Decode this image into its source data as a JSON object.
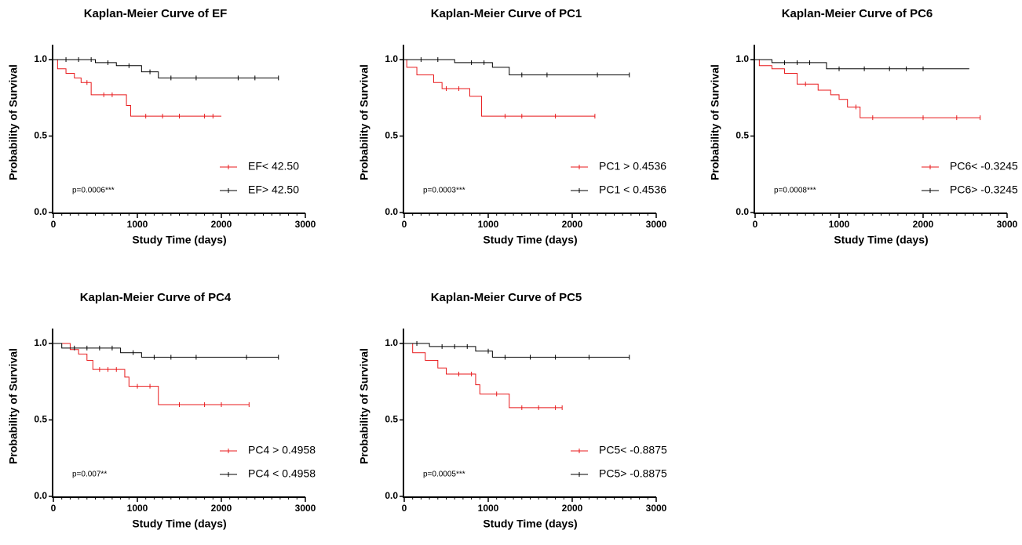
{
  "chart_data": [
    {
      "type": "step",
      "title": "Kaplan-Meier Curve of EF",
      "x_label": "Study Time (days)",
      "y_label": "Probability of Survival",
      "annotation": "p=0.0006***",
      "xlim": [
        0,
        3000
      ],
      "ylim": [
        0,
        1.0
      ],
      "xticks": [
        0,
        1000,
        2000,
        3000
      ],
      "yticks": [
        {
          "value": 0,
          "label": "0.0"
        },
        {
          "value": 0.5,
          "label": "0.5"
        },
        {
          "value": 1,
          "label": "1.0"
        }
      ],
      "series": [
        {
          "name": "EF< 42.50",
          "color": "#e8191b",
          "x": [
            0,
            50,
            150,
            250,
            330,
            450,
            870,
            920,
            2000
          ],
          "values": [
            1.0,
            0.94,
            0.91,
            0.88,
            0.85,
            0.77,
            0.7,
            0.63,
            0.63
          ],
          "censored": [
            400,
            600,
            700,
            1100,
            1300,
            1500,
            1800,
            1900
          ]
        },
        {
          "name": "EF> 42.50",
          "color": "#000000",
          "x": [
            0,
            500,
            750,
            1050,
            1250,
            2680
          ],
          "values": [
            1.0,
            0.98,
            0.96,
            0.92,
            0.88,
            0.88
          ],
          "censored": [
            150,
            300,
            450,
            650,
            900,
            1150,
            1400,
            1700,
            2200,
            2400,
            2680
          ]
        }
      ]
    },
    {
      "type": "step",
      "title": "Kaplan-Meier Curve of PC1",
      "x_label": "Study Time (days)",
      "y_label": "Probability of Survival",
      "annotation": "p=0.0003***",
      "xlim": [
        0,
        3000
      ],
      "ylim": [
        0,
        1.0
      ],
      "xticks": [
        0,
        1000,
        2000,
        3000
      ],
      "yticks": [
        {
          "value": 0,
          "label": "0.0"
        },
        {
          "value": 0.5,
          "label": "0.5"
        },
        {
          "value": 1,
          "label": "1.0"
        }
      ],
      "series": [
        {
          "name": "PC1 > 0.4536",
          "color": "#e8191b",
          "x": [
            0,
            30,
            150,
            350,
            450,
            780,
            920,
            2270
          ],
          "values": [
            1.0,
            0.95,
            0.9,
            0.85,
            0.81,
            0.76,
            0.63,
            0.63
          ],
          "censored": [
            500,
            650,
            1200,
            1400,
            1800,
            2270
          ]
        },
        {
          "name": "PC1 < 0.4536",
          "color": "#000000",
          "x": [
            0,
            600,
            1050,
            1250,
            2680
          ],
          "values": [
            1.0,
            0.98,
            0.95,
            0.9,
            0.9
          ],
          "censored": [
            200,
            400,
            800,
            950,
            1400,
            1700,
            2300,
            2680
          ]
        }
      ]
    },
    {
      "type": "step",
      "title": "Kaplan-Meier Curve of PC6",
      "x_label": "Study Time (days)",
      "y_label": "Probability of Survival",
      "annotation": "p=0.0008***",
      "xlim": [
        0,
        3000
      ],
      "ylim": [
        0,
        1.0
      ],
      "xticks": [
        0,
        1000,
        2000,
        3000
      ],
      "yticks": [
        {
          "value": 0,
          "label": "0.0"
        },
        {
          "value": 0.5,
          "label": "0.5"
        },
        {
          "value": 1,
          "label": "1.0"
        }
      ],
      "series": [
        {
          "name": "PC6< -0.3245",
          "color": "#e8191b",
          "x": [
            0,
            50,
            200,
            350,
            500,
            750,
            900,
            1000,
            1100,
            1250,
            2680
          ],
          "values": [
            1.0,
            0.96,
            0.94,
            0.91,
            0.84,
            0.8,
            0.77,
            0.74,
            0.69,
            0.62,
            0.62
          ],
          "censored": [
            600,
            1200,
            1400,
            2000,
            2400,
            2680
          ]
        },
        {
          "name": "PC6> -0.3245",
          "color": "#000000",
          "x": [
            0,
            200,
            850,
            2550
          ],
          "values": [
            1.0,
            0.98,
            0.94,
            0.94
          ],
          "censored": [
            350,
            500,
            650,
            1000,
            1300,
            1600,
            1800,
            2000
          ]
        }
      ]
    },
    {
      "type": "step",
      "title": "Kaplan-Meier Curve of PC4",
      "x_label": "Study Time (days)",
      "y_label": "Probability of Survival",
      "annotation": "p=0.007**",
      "xlim": [
        0,
        3000
      ],
      "ylim": [
        0,
        1.0
      ],
      "xticks": [
        0,
        1000,
        2000,
        3000
      ],
      "yticks": [
        {
          "value": 0,
          "label": "0.0"
        },
        {
          "value": 0.5,
          "label": "0.5"
        },
        {
          "value": 1,
          "label": "1.0"
        }
      ],
      "series": [
        {
          "name": "PC4 > 0.4958",
          "color": "#e8191b",
          "x": [
            0,
            200,
            300,
            400,
            470,
            850,
            900,
            1250,
            2330
          ],
          "values": [
            1.0,
            0.96,
            0.93,
            0.89,
            0.83,
            0.78,
            0.72,
            0.6,
            0.6
          ],
          "censored": [
            550,
            650,
            750,
            1000,
            1150,
            1500,
            1800,
            2000,
            2330
          ]
        },
        {
          "name": "PC4 < 0.4958",
          "color": "#000000",
          "x": [
            0,
            100,
            800,
            1050,
            2680
          ],
          "values": [
            1.0,
            0.97,
            0.94,
            0.91,
            0.91
          ],
          "censored": [
            250,
            400,
            550,
            700,
            950,
            1200,
            1400,
            1700,
            2300,
            2680
          ]
        }
      ]
    },
    {
      "type": "step",
      "title": "Kaplan-Meier Curve of PC5",
      "x_label": "Study Time (days)",
      "y_label": "Probability of Survival",
      "annotation": "p=0.0005***",
      "xlim": [
        0,
        3000
      ],
      "ylim": [
        0,
        1.0
      ],
      "xticks": [
        0,
        1000,
        2000,
        3000
      ],
      "yticks": [
        {
          "value": 0,
          "label": "0.0"
        },
        {
          "value": 0.5,
          "label": "0.5"
        },
        {
          "value": 1,
          "label": "1.0"
        }
      ],
      "series": [
        {
          "name": "PC5< -0.8875",
          "color": "#e8191b",
          "x": [
            0,
            100,
            250,
            400,
            500,
            850,
            900,
            1250,
            1880
          ],
          "values": [
            1.0,
            0.94,
            0.89,
            0.84,
            0.8,
            0.73,
            0.67,
            0.58,
            0.58
          ],
          "censored": [
            650,
            800,
            1100,
            1400,
            1600,
            1800,
            1880
          ]
        },
        {
          "name": "PC5> -0.8875",
          "color": "#000000",
          "x": [
            0,
            300,
            850,
            1050,
            2680
          ],
          "values": [
            1.0,
            0.98,
            0.95,
            0.91,
            0.91
          ],
          "censored": [
            150,
            450,
            600,
            750,
            1000,
            1200,
            1500,
            1800,
            2200,
            2680
          ]
        }
      ]
    }
  ]
}
